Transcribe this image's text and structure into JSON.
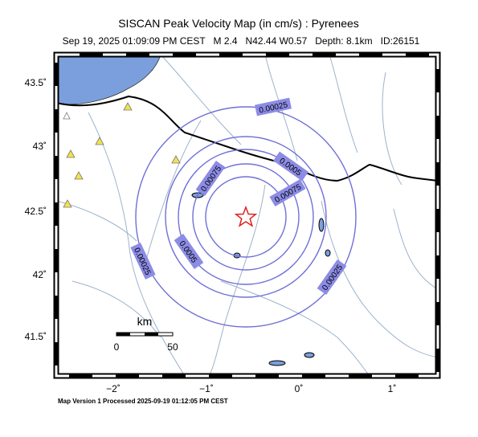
{
  "header": {
    "title": "SISCAN Peak Velocity Map (in cm/s) : Pyrenees",
    "subtitle": "Sep 19, 2025 01:09:09 PM CEST   M 2.4   N42.44 W0.57   Depth: 8.1km   ID:26151"
  },
  "map": {
    "x_axis_labels": [
      "−2˚",
      "−1˚",
      "0˚",
      "1˚"
    ],
    "y_axis_labels": [
      "43.5˚",
      "43˚",
      "42.5˚",
      "42˚",
      "41.5˚"
    ],
    "contour_labels": [
      "0.00025",
      "0.0005",
      "0.00075",
      "0.00075",
      "0.0005",
      "0.00025",
      "0.00025"
    ],
    "scale_bar": {
      "unit": "km",
      "labels": [
        "0",
        "50"
      ]
    }
  },
  "footer": "Map Version 1 Processed 2025-09-19 01:12:05 PM CEST"
}
